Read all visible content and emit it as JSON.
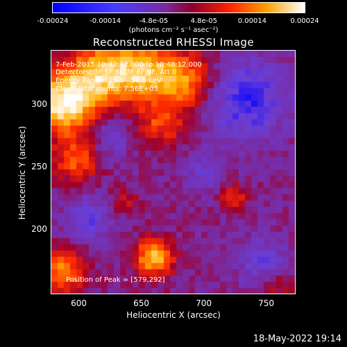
{
  "colorbar": {
    "ticks": [
      "-0.00024",
      "-0.00014",
      "-4.8e-05",
      "4.8e-05",
      "0.00014",
      "0.00024"
    ],
    "tick_values": [
      -0.00024,
      -0.00014,
      -4.8e-05,
      4.8e-05,
      0.00014,
      0.00024
    ],
    "units": "(photons cm⁻² s⁻¹ asec⁻²)"
  },
  "chart_data": {
    "type": "heatmap",
    "title": "Reconstructed RHESSI Image",
    "xlabel": "Heliocentric X (arcsec)",
    "ylabel": "Heliocentric Y (arcsec)",
    "xlim": [
      578,
      773
    ],
    "ylim": [
      149,
      343
    ],
    "xticks": [
      600,
      650,
      700,
      750
    ],
    "yticks": [
      200,
      250,
      300
    ],
    "colormap": [
      "#0000ff",
      "#6a3fd6",
      "#7a2a9e",
      "#a0002a",
      "#ff2a00",
      "#ffae00",
      "#ffffff"
    ],
    "annotations": {
      "time_range": "7-Feb-2015 10:42:12.000 to 10:48:12.000",
      "detectors": "Detectors: 3F 5F 6F 7F 8F 9F, Att 0",
      "energy": "Energy Range: 25.0 - 50.0 keV",
      "clean": "Clean    Total counts: 7.56E+03",
      "peak": "Position of Peak = [579,292]"
    }
  },
  "footer": {
    "date": "18-May-2022 19:14"
  }
}
